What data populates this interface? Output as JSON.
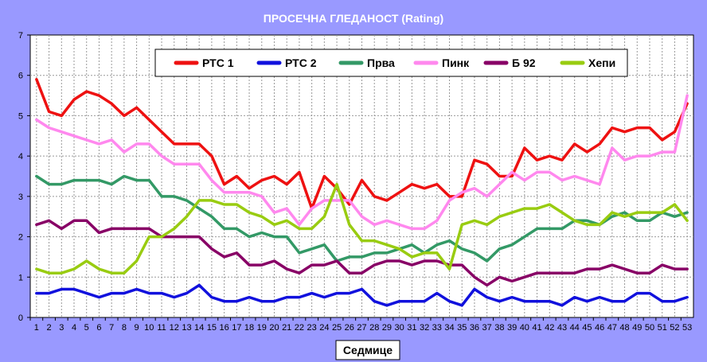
{
  "chart_data": {
    "type": "line",
    "title": "ПРОСЕЧНА ГЛЕДАНОСТ (Rating)",
    "xlabel": "Седмице",
    "ylabel": "",
    "ylim": [
      0,
      7
    ],
    "y_ticks": [
      "0",
      "1",
      "2",
      "3",
      "4",
      "5",
      "6",
      "7"
    ],
    "grid": "on",
    "legend_position": "top",
    "x": [
      "1",
      "2",
      "3",
      "4",
      "5",
      "6",
      "7",
      "8",
      "9",
      "10",
      "11",
      "12",
      "13",
      "14",
      "15",
      "16",
      "17",
      "18",
      "19",
      "20",
      "21",
      "22",
      "23",
      "24",
      "25",
      "26",
      "27",
      "28",
      "29",
      "30",
      "31",
      "32",
      "33",
      "34",
      "35",
      "36",
      "37",
      "38",
      "39",
      "40",
      "41",
      "42",
      "43",
      "44",
      "45",
      "46",
      "47",
      "48",
      "49",
      "50",
      "51",
      "52",
      "53"
    ],
    "series": [
      {
        "name": "РТС 1",
        "color": "#ee1111",
        "values": [
          5.9,
          5.1,
          5.0,
          5.4,
          5.6,
          5.5,
          5.3,
          5.0,
          5.2,
          4.9,
          4.6,
          4.3,
          4.3,
          4.3,
          4.0,
          3.3,
          3.5,
          3.2,
          3.4,
          3.5,
          3.3,
          3.6,
          2.7,
          3.5,
          3.2,
          2.8,
          3.4,
          3.0,
          2.9,
          3.1,
          3.3,
          3.2,
          3.3,
          3.0,
          3.0,
          3.9,
          3.8,
          3.5,
          3.5,
          4.2,
          3.9,
          4.0,
          3.9,
          4.3,
          4.1,
          4.3,
          4.7,
          4.6,
          4.7,
          4.7,
          4.4,
          4.6,
          5.3
        ]
      },
      {
        "name": "РТС 2",
        "color": "#1111dd",
        "values": [
          0.6,
          0.6,
          0.7,
          0.7,
          0.6,
          0.5,
          0.6,
          0.6,
          0.7,
          0.6,
          0.6,
          0.5,
          0.6,
          0.8,
          0.5,
          0.4,
          0.4,
          0.5,
          0.4,
          0.4,
          0.5,
          0.5,
          0.6,
          0.5,
          0.6,
          0.6,
          0.7,
          0.4,
          0.3,
          0.4,
          0.4,
          0.4,
          0.6,
          0.4,
          0.3,
          0.7,
          0.5,
          0.4,
          0.5,
          0.4,
          0.4,
          0.4,
          0.3,
          0.5,
          0.4,
          0.5,
          0.4,
          0.4,
          0.6,
          0.6,
          0.4,
          0.4,
          0.5
        ]
      },
      {
        "name": "Прва",
        "color": "#339966",
        "values": [
          3.5,
          3.3,
          3.3,
          3.4,
          3.4,
          3.4,
          3.3,
          3.5,
          3.4,
          3.4,
          3.0,
          3.0,
          2.9,
          2.7,
          2.5,
          2.2,
          2.2,
          2.0,
          2.1,
          2.0,
          2.0,
          1.6,
          1.7,
          1.8,
          1.4,
          1.5,
          1.5,
          1.6,
          1.6,
          1.7,
          1.8,
          1.6,
          1.8,
          1.9,
          1.7,
          1.6,
          1.4,
          1.7,
          1.8,
          2.0,
          2.2,
          2.2,
          2.2,
          2.4,
          2.4,
          2.3,
          2.5,
          2.6,
          2.4,
          2.4,
          2.6,
          2.5,
          2.6
        ]
      },
      {
        "name": "Пинк",
        "color": "#ff88ee",
        "values": [
          4.9,
          4.7,
          4.6,
          4.5,
          4.4,
          4.3,
          4.4,
          4.1,
          4.3,
          4.3,
          4.0,
          3.8,
          3.8,
          3.8,
          3.4,
          3.1,
          3.1,
          3.1,
          3.0,
          2.6,
          2.7,
          2.3,
          2.7,
          2.9,
          2.9,
          2.9,
          2.5,
          2.3,
          2.4,
          2.3,
          2.2,
          2.2,
          2.4,
          2.9,
          3.1,
          3.2,
          3.0,
          3.3,
          3.6,
          3.4,
          3.6,
          3.6,
          3.4,
          3.5,
          3.4,
          3.3,
          4.2,
          3.9,
          4.0,
          4.0,
          4.1,
          4.1,
          5.5
        ]
      },
      {
        "name": "Б 92",
        "color": "#880066",
        "values": [
          2.3,
          2.4,
          2.2,
          2.4,
          2.4,
          2.1,
          2.2,
          2.2,
          2.2,
          2.2,
          2.0,
          2.0,
          2.0,
          2.0,
          1.7,
          1.5,
          1.6,
          1.3,
          1.3,
          1.4,
          1.2,
          1.1,
          1.3,
          1.3,
          1.4,
          1.1,
          1.1,
          1.3,
          1.4,
          1.4,
          1.3,
          1.4,
          1.4,
          1.3,
          1.3,
          1.0,
          0.8,
          1.0,
          0.9,
          1.0,
          1.1,
          1.1,
          1.1,
          1.1,
          1.2,
          1.2,
          1.3,
          1.2,
          1.1,
          1.1,
          1.3,
          1.2,
          1.2
        ]
      },
      {
        "name": "Хепи",
        "color": "#99cc11",
        "values": [
          1.2,
          1.1,
          1.1,
          1.2,
          1.4,
          1.2,
          1.1,
          1.1,
          1.4,
          2.0,
          2.0,
          2.2,
          2.5,
          2.9,
          2.9,
          2.8,
          2.8,
          2.6,
          2.5,
          2.3,
          2.4,
          2.2,
          2.2,
          2.5,
          3.3,
          2.3,
          1.9,
          1.9,
          1.8,
          1.7,
          1.5,
          1.6,
          1.6,
          1.2,
          2.3,
          2.4,
          2.3,
          2.5,
          2.6,
          2.7,
          2.7,
          2.8,
          2.6,
          2.4,
          2.3,
          2.3,
          2.6,
          2.5,
          2.6,
          2.6,
          2.6,
          2.8,
          2.4
        ]
      }
    ]
  }
}
